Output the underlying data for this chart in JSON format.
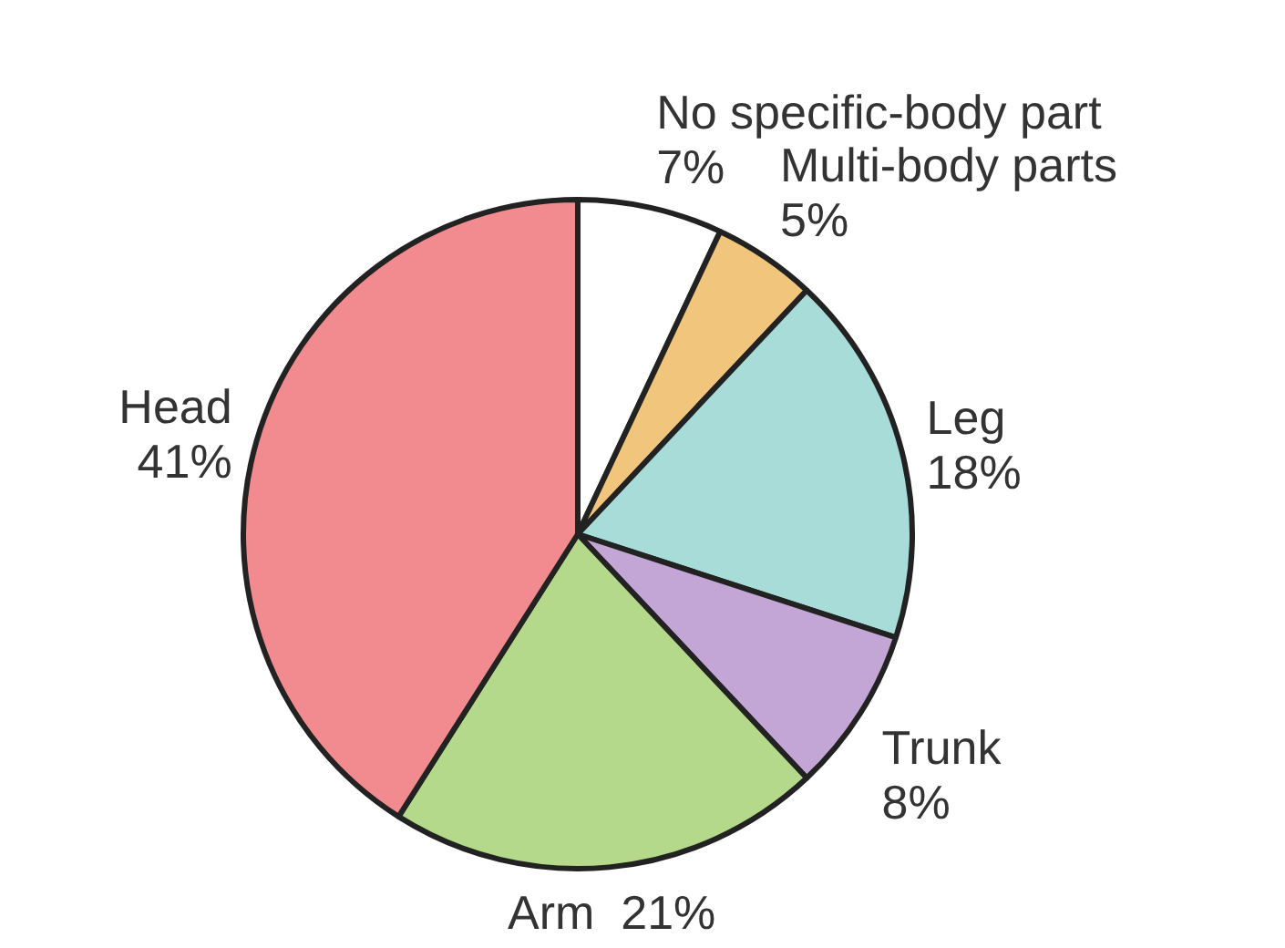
{
  "chart_data": {
    "type": "pie",
    "categories": [
      "No specific-body part",
      "Multi-body parts",
      "Leg",
      "Trunk",
      "Arm",
      "Head"
    ],
    "values": [
      7,
      5,
      18,
      8,
      21,
      41
    ],
    "value_labels": [
      "7%",
      "5%",
      "18%",
      "8%",
      "21%",
      "41%"
    ],
    "colors": [
      "#ffffff",
      "#f2c57c",
      "#a8dcd9",
      "#c4a6d6",
      "#b5d98a",
      "#f28b8f"
    ],
    "legend": false
  }
}
